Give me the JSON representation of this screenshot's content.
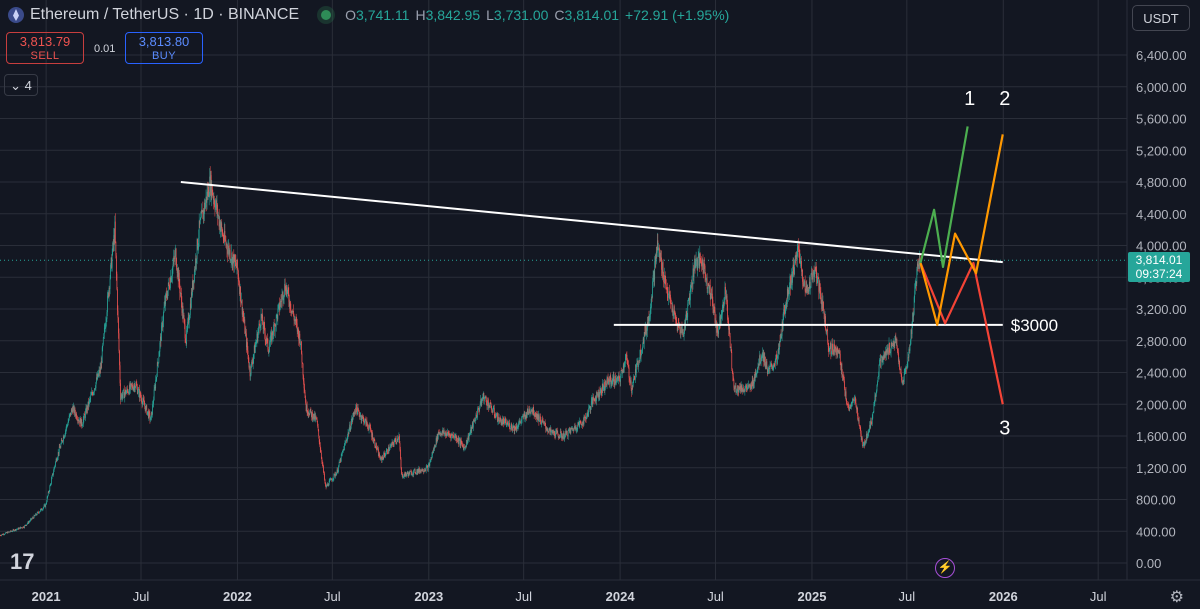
{
  "header": {
    "title": "Ethereum / TetherUS · 1D · BINANCE",
    "open_label": "O",
    "open": "3,741.11",
    "high_label": "H",
    "high": "3,842.95",
    "low_label": "L",
    "low": "3,731.00",
    "close_label": "C",
    "close": "3,814.01",
    "change": "+72.91 (+1.95%)"
  },
  "trade": {
    "sell_price": "3,813.79",
    "sell_label": "SELL",
    "spread": "0.01",
    "buy_price": "3,813.80",
    "buy_label": "BUY"
  },
  "indicators_toggle": "4",
  "currency": "USDT",
  "current_price": {
    "value": "3,814.01",
    "countdown": "09:37:24"
  },
  "icons": {
    "logo": "ethereum-icon",
    "chevron": "chevron-down-icon",
    "flash": "lightning-icon",
    "settings": "gear-icon",
    "brand": "tradingview-logo"
  },
  "colors": {
    "background": "#131722",
    "up": "#26a69a",
    "down": "#ef5350",
    "grid": "#2a2e39",
    "trendline": "#ffffff",
    "scenario1": "#4caf50",
    "scenario2": "#ff9800",
    "scenario3": "#f44336"
  },
  "chart_data": {
    "type": "candlestick",
    "symbol": "ETHUSDT",
    "interval": "1D",
    "y_ticks": [
      0,
      400,
      800,
      1200,
      1600,
      2000,
      2400,
      2800,
      3200,
      3600,
      4000,
      4400,
      4800,
      5200,
      5600,
      6000,
      6400
    ],
    "y_tick_labels": [
      "0.00",
      "400.00",
      "800.00",
      "1,200.00",
      "1,600.00",
      "2,000.00",
      "2,400.00",
      "2,800.00",
      "3,200.00",
      "3,600.00",
      "4,000.00",
      "4,400.00",
      "4,800.00",
      "5,200.00",
      "5,600.00",
      "6,000.00",
      "6,400.00"
    ],
    "ylim": [
      0,
      6700
    ],
    "x_ticks": [
      {
        "label": "2021",
        "date": "2021-01-01",
        "bold": true
      },
      {
        "label": "Jul",
        "date": "2021-07-01",
        "bold": false
      },
      {
        "label": "2022",
        "date": "2022-01-01",
        "bold": true
      },
      {
        "label": "Jul",
        "date": "2022-07-01",
        "bold": false
      },
      {
        "label": "2023",
        "date": "2023-01-01",
        "bold": true
      },
      {
        "label": "Jul",
        "date": "2023-07-01",
        "bold": false
      },
      {
        "label": "2024",
        "date": "2024-01-01",
        "bold": true
      },
      {
        "label": "Jul",
        "date": "2024-07-01",
        "bold": false
      },
      {
        "label": "2025",
        "date": "2025-01-01",
        "bold": true
      },
      {
        "label": "Jul",
        "date": "2025-07-01",
        "bold": false
      },
      {
        "label": "2026",
        "date": "2026-01-01",
        "bold": true
      },
      {
        "label": "Jul",
        "date": "2026-07-01",
        "bold": false
      }
    ],
    "xlim": [
      "2020-10-05",
      "2026-08-25"
    ],
    "price_path": [
      [
        "2020-10-05",
        350
      ],
      [
        "2020-11-20",
        460
      ],
      [
        "2020-12-31",
        730
      ],
      [
        "2021-01-20",
        1300
      ],
      [
        "2021-02-20",
        1950
      ],
      [
        "2021-03-10",
        1750
      ],
      [
        "2021-04-15",
        2450
      ],
      [
        "2021-05-12",
        4200
      ],
      [
        "2021-05-23",
        2100
      ],
      [
        "2021-06-20",
        2250
      ],
      [
        "2021-07-20",
        1800
      ],
      [
        "2021-08-15",
        3250
      ],
      [
        "2021-09-05",
        3900
      ],
      [
        "2021-09-25",
        2800
      ],
      [
        "2021-10-20",
        4200
      ],
      [
        "2021-11-10",
        4800
      ],
      [
        "2021-12-05",
        4100
      ],
      [
        "2022-01-01",
        3700
      ],
      [
        "2022-01-25",
        2400
      ],
      [
        "2022-02-15",
        3100
      ],
      [
        "2022-03-01",
        2700
      ],
      [
        "2022-04-02",
        3500
      ],
      [
        "2022-05-01",
        2800
      ],
      [
        "2022-05-12",
        1950
      ],
      [
        "2022-06-01",
        1800
      ],
      [
        "2022-06-18",
        950
      ],
      [
        "2022-07-10",
        1150
      ],
      [
        "2022-08-14",
        1950
      ],
      [
        "2022-09-10",
        1700
      ],
      [
        "2022-10-01",
        1300
      ],
      [
        "2022-11-05",
        1600
      ],
      [
        "2022-11-10",
        1100
      ],
      [
        "2022-12-31",
        1200
      ],
      [
        "2023-01-20",
        1650
      ],
      [
        "2023-02-20",
        1600
      ],
      [
        "2023-03-10",
        1450
      ],
      [
        "2023-04-15",
        2100
      ],
      [
        "2023-05-15",
        1800
      ],
      [
        "2023-06-15",
        1700
      ],
      [
        "2023-07-15",
        1950
      ],
      [
        "2023-08-20",
        1650
      ],
      [
        "2023-09-15",
        1600
      ],
      [
        "2023-10-25",
        1800
      ],
      [
        "2023-11-10",
        2050
      ],
      [
        "2023-12-10",
        2300
      ],
      [
        "2023-12-31",
        2300
      ],
      [
        "2024-01-12",
        2600
      ],
      [
        "2024-01-23",
        2200
      ],
      [
        "2024-02-25",
        3100
      ],
      [
        "2024-03-12",
        4000
      ],
      [
        "2024-04-01",
        3400
      ],
      [
        "2024-04-18",
        3000
      ],
      [
        "2024-05-01",
        2900
      ],
      [
        "2024-05-23",
        3800
      ],
      [
        "2024-06-05",
        3800
      ],
      [
        "2024-06-25",
        3300
      ],
      [
        "2024-07-05",
        2900
      ],
      [
        "2024-07-20",
        3450
      ],
      [
        "2024-08-05",
        2200
      ],
      [
        "2024-09-06",
        2200
      ],
      [
        "2024-09-28",
        2650
      ],
      [
        "2024-10-10",
        2400
      ],
      [
        "2024-10-28",
        2600
      ],
      [
        "2024-11-12",
        3300
      ],
      [
        "2024-12-06",
        3950
      ],
      [
        "2024-12-20",
        3400
      ],
      [
        "2025-01-06",
        3700
      ],
      [
        "2025-01-20",
        3300
      ],
      [
        "2025-02-03",
        2700
      ],
      [
        "2025-02-20",
        2700
      ],
      [
        "2025-03-10",
        1950
      ],
      [
        "2025-03-25",
        2050
      ],
      [
        "2025-04-08",
        1450
      ],
      [
        "2025-04-25",
        1800
      ],
      [
        "2025-05-10",
        2500
      ],
      [
        "2025-05-28",
        2700
      ],
      [
        "2025-06-10",
        2800
      ],
      [
        "2025-06-22",
        2250
      ],
      [
        "2025-07-03",
        2550
      ],
      [
        "2025-07-11",
        3000
      ],
      [
        "2025-07-21",
        3750
      ],
      [
        "2025-07-26",
        3814
      ]
    ],
    "annotations": {
      "trendline": {
        "start": [
          "2021-09-15",
          4800
        ],
        "end": [
          "2025-12-31",
          3790
        ]
      },
      "support": {
        "start": [
          "2023-12-20",
          3000
        ],
        "end": [
          "2025-12-31",
          3000
        ],
        "label": "$3000"
      },
      "scenario_1": {
        "label": "1",
        "path": [
          [
            "2025-07-27",
            3780
          ],
          [
            "2025-08-22",
            4450
          ],
          [
            "2025-09-08",
            3730
          ],
          [
            "2025-10-25",
            5500
          ]
        ]
      },
      "scenario_2": {
        "label": "2",
        "path": [
          [
            "2025-07-27",
            3780
          ],
          [
            "2025-08-28",
            3000
          ],
          [
            "2025-10-01",
            4150
          ],
          [
            "2025-11-10",
            3650
          ],
          [
            "2025-12-31",
            5400
          ]
        ]
      },
      "scenario_3": {
        "label": "3",
        "path": [
          [
            "2025-07-27",
            3780
          ],
          [
            "2025-09-12",
            3020
          ],
          [
            "2025-11-05",
            3780
          ],
          [
            "2025-12-31",
            2000
          ]
        ]
      }
    }
  }
}
